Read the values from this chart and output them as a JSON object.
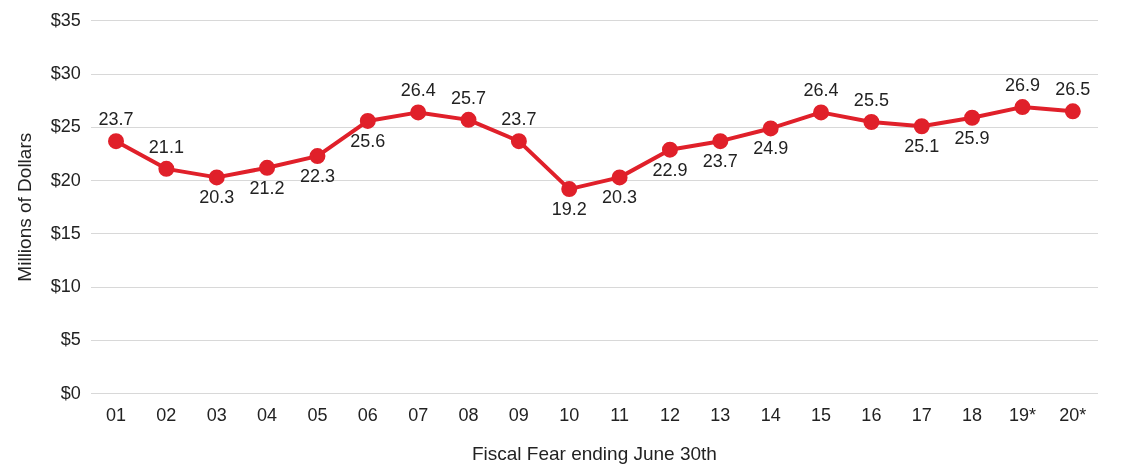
{
  "chart_data": {
    "type": "line",
    "xlabel": "Fiscal Fear ending June 30th",
    "ylabel": "Millions of Dollars",
    "categories": [
      "01",
      "02",
      "03",
      "04",
      "05",
      "06",
      "07",
      "08",
      "09",
      "10",
      "11",
      "12",
      "13",
      "14",
      "15",
      "16",
      "17",
      "18",
      "19*",
      "20*"
    ],
    "series": [
      {
        "color": "#e0202a",
        "values": [
          23.7,
          21.1,
          20.3,
          21.2,
          22.3,
          25.6,
          26.4,
          25.7,
          23.7,
          19.2,
          20.3,
          22.9,
          23.7,
          24.9,
          26.4,
          25.5,
          25.1,
          25.9,
          26.9,
          26.5
        ]
      }
    ],
    "ylim": [
      0,
      35
    ],
    "yticks": [
      {
        "value": 0,
        "label": "$0"
      },
      {
        "value": 5,
        "label": "$5"
      },
      {
        "value": 10,
        "label": "$10"
      },
      {
        "value": 15,
        "label": "$15"
      },
      {
        "value": 20,
        "label": "$20"
      },
      {
        "value": 25,
        "label": "$25"
      },
      {
        "value": 30,
        "label": "$30"
      },
      {
        "value": 35,
        "label": "$35"
      }
    ],
    "grid": "y",
    "legend": false,
    "marker": "circle",
    "line_style": "solid",
    "data_labels": true
  }
}
